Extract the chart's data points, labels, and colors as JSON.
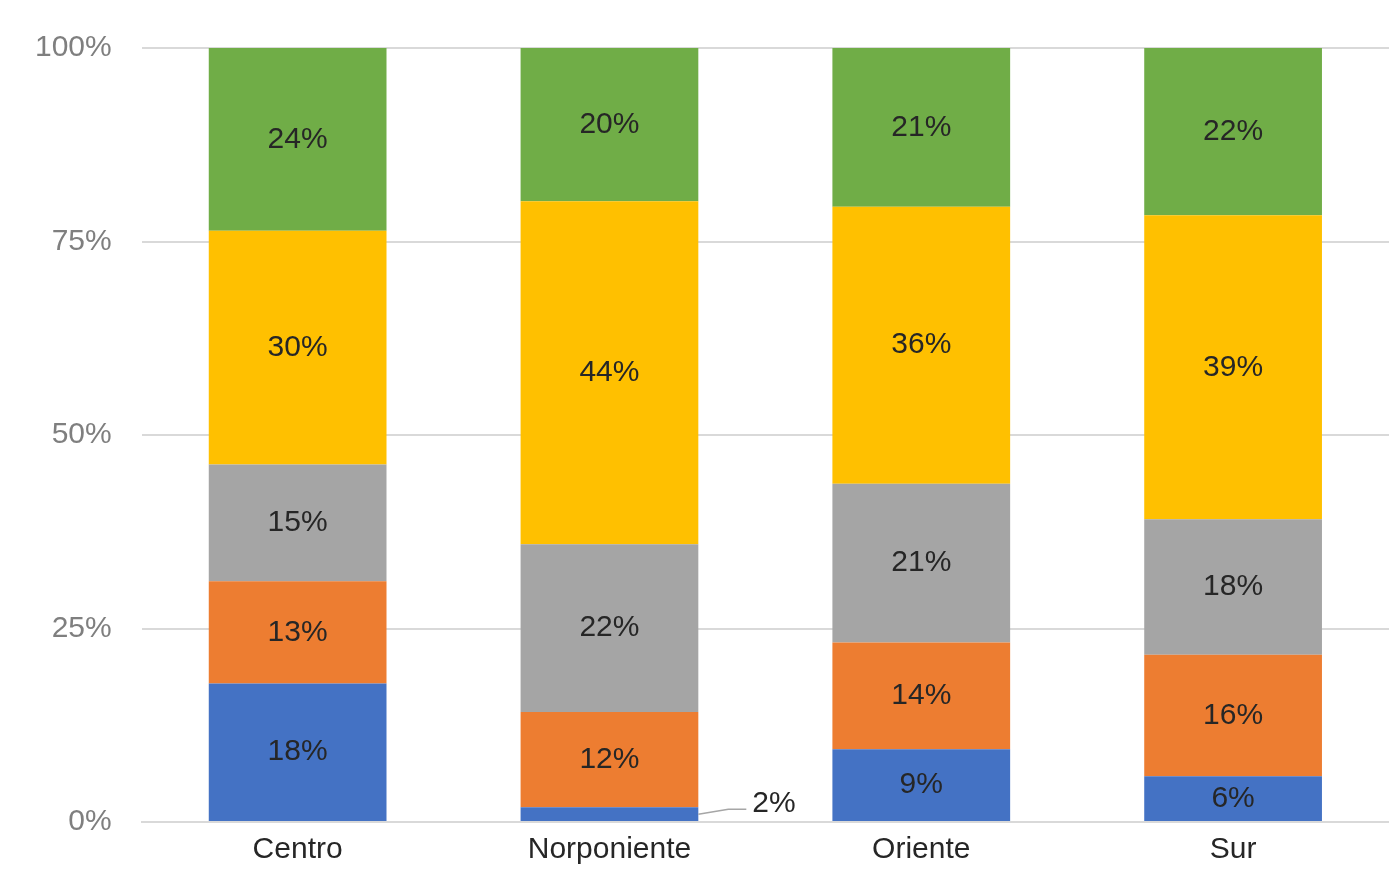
{
  "chart_data": {
    "type": "bar",
    "stacked": true,
    "categories": [
      "Centro",
      "Norponiente",
      "Oriente",
      "Sur"
    ],
    "ylim": [
      0,
      100
    ],
    "yticks": [
      {
        "value": 0,
        "label": "0%"
      },
      {
        "value": 25,
        "label": "25%"
      },
      {
        "value": 50,
        "label": "50%"
      },
      {
        "value": 75,
        "label": "75%"
      },
      {
        "value": 100,
        "label": "100%"
      }
    ],
    "grid": "y",
    "legend": false,
    "series": [
      {
        "color": "#4472c4",
        "values": [
          17.9,
          1.9,
          9.4,
          5.9
        ],
        "value_labels": [
          "18%",
          "2%",
          "9%",
          "6%"
        ]
      },
      {
        "color": "#ed7d31",
        "values": [
          13.2,
          12.3,
          13.8,
          15.7
        ],
        "value_labels": [
          "13%",
          "12%",
          "14%",
          "16%"
        ]
      },
      {
        "color": "#a5a5a5",
        "values": [
          15.1,
          21.7,
          20.5,
          17.5
        ],
        "value_labels": [
          "15%",
          "22%",
          "21%",
          "18%"
        ]
      },
      {
        "color": "#ffc000",
        "values": [
          30.2,
          44.3,
          35.8,
          39.3
        ],
        "value_labels": [
          "30%",
          "44%",
          "36%",
          "39%"
        ]
      },
      {
        "color": "#70ad47",
        "values": [
          23.6,
          19.8,
          20.5,
          21.6
        ],
        "value_labels": [
          "24%",
          "20%",
          "21%",
          "22%"
        ]
      }
    ]
  }
}
